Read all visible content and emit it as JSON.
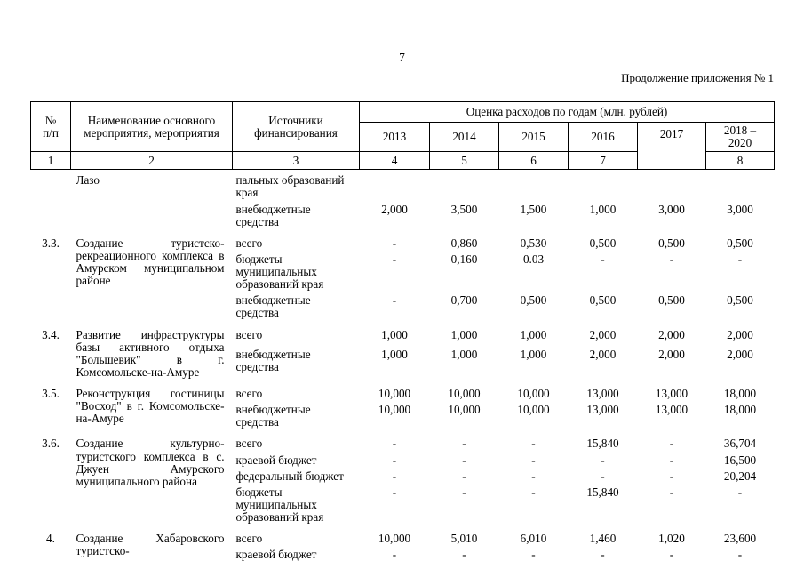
{
  "page": {
    "number": "7",
    "continuation_note": "Продолжение приложения № 1"
  },
  "table": {
    "headers": {
      "num": "№\nп/п",
      "name": "Наименование основного мероприятия, мероприятия",
      "sources": "Источники финансирования",
      "costs": "Оценка расходов по годам (млн. рублей)",
      "years": [
        "2013",
        "2014",
        "2015",
        "2016",
        "2017",
        "2018 –\n2020"
      ],
      "col_numbers": [
        "1",
        "2",
        "3",
        "4",
        "5",
        "6",
        "7",
        "8"
      ]
    },
    "rows": [
      {
        "num": "",
        "name": "Лазо",
        "subrows": [
          {
            "source": "пальных образований края",
            "values": [
              "",
              "",
              "",
              "",
              "",
              ""
            ]
          },
          {
            "source": "внебюджетные средства",
            "values": [
              "2,000",
              "3,500",
              "1,500",
              "1,000",
              "3,000",
              "3,000"
            ]
          }
        ]
      },
      {
        "num": "3.3.",
        "name": "Создание туристско-рекреационного комплекса в Амурском муниципальном районе",
        "subrows": [
          {
            "source": "всего",
            "values": [
              "-",
              "0,860",
              "0,530",
              "0,500",
              "0,500",
              "0,500"
            ]
          },
          {
            "source": "бюджеты муниципальных образований края",
            "values": [
              "-",
              "0,160",
              "0.03",
              "-",
              "-",
              "-"
            ]
          },
          {
            "source": "внебюджетные средства",
            "values": [
              "-",
              "0,700",
              "0,500",
              "0,500",
              "0,500",
              "0,500"
            ]
          }
        ]
      },
      {
        "num": "3.4.",
        "name": "Развитие инфраструктуры базы активного отдыха \"Большевик\" в г. Комсомольске-на-Амуре",
        "subrows": [
          {
            "source": "всего",
            "values": [
              "1,000",
              "1,000",
              "1,000",
              "2,000",
              "2,000",
              "2,000"
            ]
          },
          {
            "source": "внебюджетные средства",
            "values": [
              "1,000",
              "1,000",
              "1,000",
              "2,000",
              "2,000",
              "2,000"
            ]
          }
        ]
      },
      {
        "num": "3.5.",
        "name": "Реконструкция гостиницы \"Восход\" в г. Комсомольске-на-Амуре",
        "subrows": [
          {
            "source": "всего",
            "values": [
              "10,000",
              "10,000",
              "10,000",
              "13,000",
              "13,000",
              "18,000"
            ]
          },
          {
            "source": "внебюджетные средства",
            "values": [
              "10,000",
              "10,000",
              "10,000",
              "13,000",
              "13,000",
              "18,000"
            ]
          }
        ]
      },
      {
        "num": "3.6.",
        "name": "Создание культурно-туристского комплекса в с. Джуен Амурского муниципального района",
        "subrows": [
          {
            "source": "всего",
            "values": [
              "-",
              "-",
              "-",
              "15,840",
              "-",
              "36,704"
            ]
          },
          {
            "source": "краевой бюджет",
            "values": [
              "-",
              "-",
              "-",
              "-",
              "-",
              "16,500"
            ]
          },
          {
            "source": "федеральный бюджет",
            "values": [
              "-",
              "-",
              "-",
              "-",
              "-",
              "20,204"
            ]
          },
          {
            "source": "бюджеты муниципальных образований края",
            "values": [
              "-",
              "-",
              "-",
              "15,840",
              "-",
              "-"
            ]
          }
        ]
      },
      {
        "num": "4.",
        "name": "Создание Хабаровского туристско-",
        "subrows": [
          {
            "source": "всего",
            "values": [
              "10,000",
              "5,010",
              "6,010",
              "1,460",
              "1,020",
              "23,600"
            ]
          },
          {
            "source": "краевой бюджет",
            "values": [
              "-",
              "-",
              "-",
              "-",
              "-",
              "-"
            ]
          }
        ]
      }
    ]
  }
}
